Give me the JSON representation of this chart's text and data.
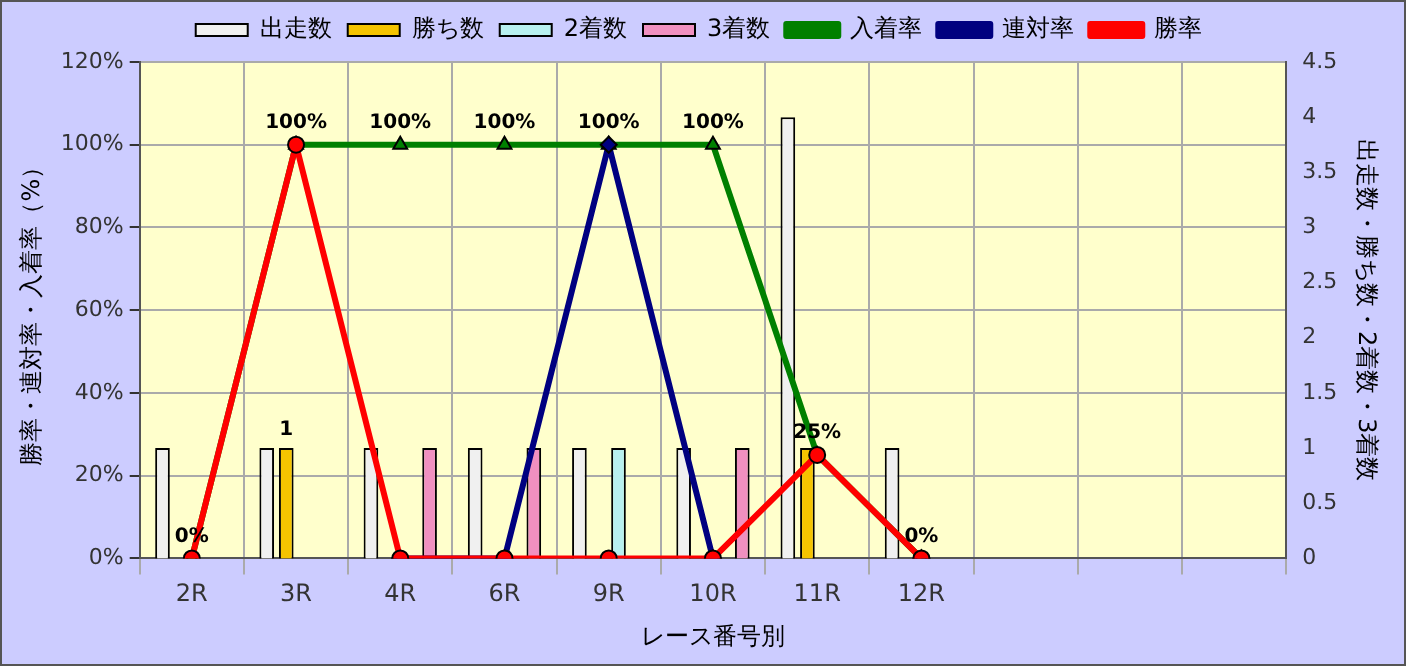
{
  "chart_data": {
    "type": "bar",
    "xlabel": "レース番号別",
    "ylabel": "勝率・連対率・入着率（%）",
    "y2label": "出走数・勝ち数・2着数・3着数",
    "categories": [
      "2R",
      "3R",
      "4R",
      "6R",
      "9R",
      "10R",
      "11R",
      "12R",
      null,
      null,
      null
    ],
    "series": [
      {
        "name": "出走数",
        "axis": "y2",
        "color": "#f0f0f0",
        "values": [
          1,
          1,
          1,
          1,
          1,
          1,
          4,
          1,
          null,
          null,
          null
        ]
      },
      {
        "name": "勝ち数",
        "axis": "y2",
        "color": "#f5c400",
        "values": [
          null,
          1,
          null,
          null,
          null,
          null,
          1,
          null,
          null,
          null,
          null
        ],
        "value_labels": [
          null,
          "1",
          null,
          null,
          null,
          null,
          null,
          null,
          null,
          null,
          null
        ]
      },
      {
        "name": "2着数",
        "axis": "y2",
        "color": "#b8f0f0",
        "values": [
          null,
          null,
          null,
          null,
          1,
          null,
          null,
          null,
          null,
          null,
          null
        ]
      },
      {
        "name": "3着数",
        "axis": "y2",
        "color": "#f090c0",
        "values": [
          null,
          null,
          1,
          1,
          null,
          1,
          null,
          null,
          null,
          null,
          null
        ]
      },
      {
        "name": "入着率",
        "type": "line",
        "color": "#008000",
        "marker": "triangle",
        "values": [
          0,
          100,
          100,
          100,
          100,
          100,
          25,
          0,
          null,
          null,
          null
        ],
        "value_labels": [
          "0%",
          "100%",
          "100%",
          "100%",
          "100%",
          "100%",
          "25%",
          "0%",
          null,
          null,
          null
        ]
      },
      {
        "name": "連対率",
        "type": "line",
        "color": "#000080",
        "marker": "diamond",
        "values": [
          null,
          null,
          0,
          0,
          100,
          0,
          null,
          0,
          null,
          null,
          null
        ]
      },
      {
        "name": "勝率",
        "type": "line",
        "color": "#ff0000",
        "marker": "circle",
        "values": [
          0,
          100,
          0,
          0,
          0,
          0,
          25,
          0,
          null,
          null,
          null
        ]
      }
    ],
    "ylim": [
      0,
      120
    ],
    "yticks": [
      {
        "value": 0,
        "label": "0%"
      },
      {
        "value": 20,
        "label": "20%"
      },
      {
        "value": 40,
        "label": "40%"
      },
      {
        "value": 60,
        "label": "60%"
      },
      {
        "value": 80,
        "label": "80%"
      },
      {
        "value": 100,
        "label": "100%"
      },
      {
        "value": 120,
        "label": "120%"
      }
    ],
    "y2lim": [
      0,
      4.5
    ],
    "y2ticks": [
      0,
      0.5,
      1,
      1.5,
      2,
      2.5,
      3,
      3.5,
      4,
      4.5
    ],
    "grid": true,
    "legend": "top"
  }
}
